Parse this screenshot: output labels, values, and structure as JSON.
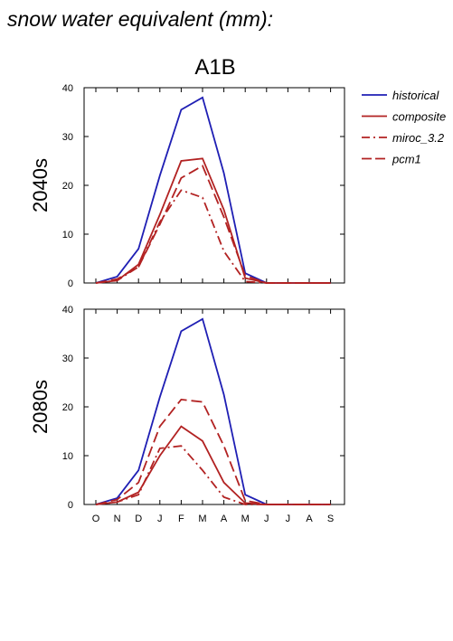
{
  "figure": {
    "title": "snow water equivalent (mm):",
    "subtitle": "A1B"
  },
  "chart_data": [
    {
      "type": "line",
      "panel_label": "2040s",
      "categories": [
        "O",
        "N",
        "D",
        "J",
        "F",
        "M",
        "A",
        "M",
        "J",
        "J",
        "A",
        "S"
      ],
      "ylim": [
        0,
        40
      ],
      "yticks": [
        0,
        10,
        20,
        30,
        40
      ],
      "grid": false,
      "legend_position": "right",
      "series": [
        {
          "name": "historical",
          "color": "#1f1fb4",
          "dash": "solid",
          "values": [
            0,
            1.3,
            7,
            22,
            35.5,
            38,
            22.5,
            2,
            0,
            0,
            0,
            0
          ]
        },
        {
          "name": "composite",
          "color": "#b22222",
          "dash": "solid",
          "values": [
            0,
            0.5,
            3.8,
            14,
            25,
            25.5,
            15,
            1,
            0,
            0,
            0,
            0
          ]
        },
        {
          "name": "miroc_3.2",
          "color": "#b22222",
          "dash": "dashdot",
          "values": [
            0,
            0.5,
            3.3,
            12.5,
            19,
            17.5,
            6.5,
            0.3,
            0,
            0,
            0,
            0
          ]
        },
        {
          "name": "pcm1",
          "color": "#b22222",
          "dash": "dash",
          "values": [
            0,
            0.8,
            3.3,
            12,
            21.5,
            24,
            13.5,
            1.5,
            0,
            0,
            0,
            0
          ]
        }
      ]
    },
    {
      "type": "line",
      "panel_label": "2080s",
      "categories": [
        "O",
        "N",
        "D",
        "J",
        "F",
        "M",
        "A",
        "M",
        "J",
        "J",
        "A",
        "S"
      ],
      "ylim": [
        0,
        40
      ],
      "yticks": [
        0,
        10,
        20,
        30,
        40
      ],
      "grid": false,
      "series": [
        {
          "name": "historical",
          "color": "#1f1fb4",
          "dash": "solid",
          "values": [
            0,
            1.3,
            7,
            22,
            35.5,
            38,
            22.5,
            2,
            0,
            0,
            0,
            0
          ]
        },
        {
          "name": "composite",
          "color": "#b22222",
          "dash": "solid",
          "values": [
            0,
            0.5,
            2.5,
            10,
            16,
            13,
            4.5,
            0.3,
            0,
            0,
            0,
            0
          ]
        },
        {
          "name": "miroc_3.2",
          "color": "#b22222",
          "dash": "dashdot",
          "values": [
            0,
            0.5,
            2,
            11.5,
            12,
            7,
            1.5,
            0,
            0,
            0,
            0,
            0
          ]
        },
        {
          "name": "pcm1",
          "color": "#b22222",
          "dash": "dash",
          "values": [
            0,
            1,
            4.5,
            16,
            21.5,
            21,
            12,
            0.8,
            0,
            0,
            0,
            0
          ]
        }
      ]
    }
  ]
}
